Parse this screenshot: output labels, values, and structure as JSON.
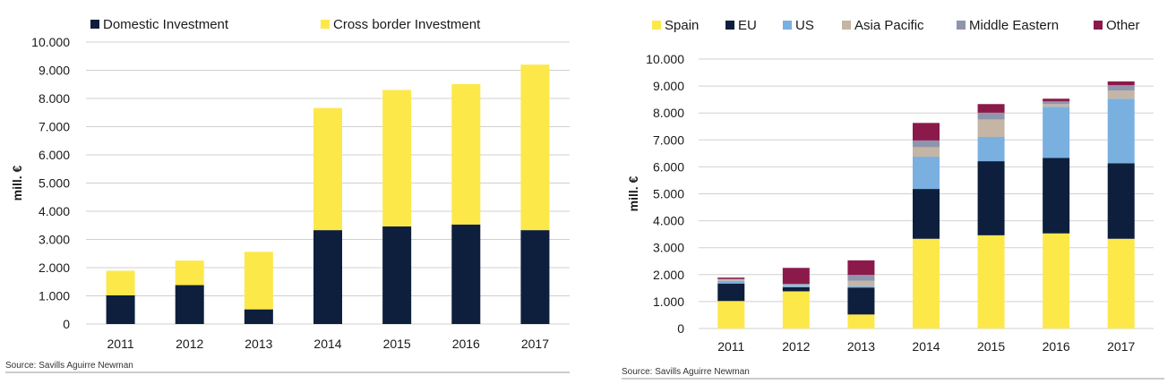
{
  "chart_data": [
    {
      "type": "bar",
      "stacked": true,
      "categories": [
        "2011",
        "2012",
        "2013",
        "2014",
        "2015",
        "2016",
        "2017"
      ],
      "series": [
        {
          "name": "Domestic Investment",
          "color": "#0d1f3c",
          "values": [
            1020,
            1380,
            520,
            3330,
            3460,
            3530,
            3330
          ]
        },
        {
          "name": "Cross border Investment",
          "color": "#fde84a",
          "values": [
            870,
            870,
            2040,
            4330,
            4840,
            4980,
            5870
          ]
        }
      ],
      "ylabel": "mill. €",
      "ylim": [
        0,
        10000
      ],
      "yticks": [
        "0",
        "1.000",
        "2.000",
        "3.000",
        "4.000",
        "5.000",
        "6.000",
        "7.000",
        "8.000",
        "9.000",
        "10.000"
      ],
      "legend": "top",
      "source": "Source: Savills Aguirre Newman"
    },
    {
      "type": "bar",
      "stacked": true,
      "categories": [
        "2011",
        "2012",
        "2013",
        "2014",
        "2015",
        "2016",
        "2017"
      ],
      "series": [
        {
          "name": "Spain",
          "color": "#fde84a",
          "values": [
            1020,
            1380,
            520,
            3330,
            3460,
            3530,
            3330
          ]
        },
        {
          "name": "EU",
          "color": "#0d1f3c",
          "values": [
            650,
            150,
            1000,
            1850,
            2750,
            2800,
            2800
          ]
        },
        {
          "name": "US",
          "color": "#7ab0e0",
          "values": [
            100,
            50,
            50,
            1200,
            900,
            1900,
            2400
          ]
        },
        {
          "name": "Asia Pacific",
          "color": "#c4b5a5",
          "values": [
            50,
            40,
            200,
            350,
            650,
            100,
            300
          ]
        },
        {
          "name": "Middle Eastern",
          "color": "#8e95ad",
          "values": [
            20,
            40,
            220,
            250,
            250,
            100,
            200
          ]
        },
        {
          "name": "Other",
          "color": "#8b1a4a",
          "values": [
            50,
            590,
            540,
            650,
            320,
            100,
            140
          ]
        }
      ],
      "ylabel": "mill. €",
      "ylim": [
        0,
        10000
      ],
      "yticks": [
        "0",
        "1.000",
        "2.000",
        "3.000",
        "4.000",
        "5.000",
        "6.000",
        "7.000",
        "8.000",
        "9.000",
        "10.000"
      ],
      "legend": "top",
      "source": "Source: Savills Aguirre Newman"
    }
  ]
}
